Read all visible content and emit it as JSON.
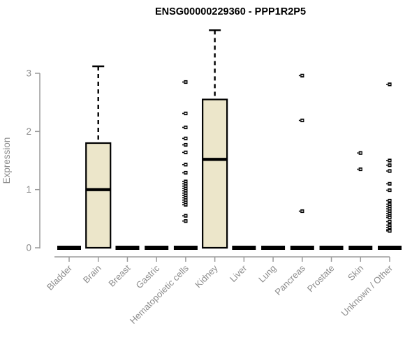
{
  "chart_data": {
    "type": "boxplot",
    "title": "ENSG00000229360 - PPP1R2P5",
    "ylabel": "Expression",
    "xlabel": "",
    "yticks": [
      0,
      1,
      2,
      3
    ],
    "ylim": [
      0,
      3.85
    ],
    "grid": false,
    "legend": false,
    "categories": [
      "Bladder",
      "Brain",
      "Breast",
      "Gastric",
      "Hematopoietic cells",
      "Kidney",
      "Liver",
      "Lung",
      "Pancreas",
      "Prostate",
      "Skin",
      "Unknown / Other"
    ],
    "series": [
      {
        "category": "Bladder",
        "q1": 0,
        "median": 0,
        "q3": 0,
        "whisker_low": 0,
        "whisker_high": 0,
        "outliers": []
      },
      {
        "category": "Brain",
        "q1": 0,
        "median": 1.0,
        "q3": 1.8,
        "whisker_low": 0,
        "whisker_high": 3.12,
        "outliers": []
      },
      {
        "category": "Breast",
        "q1": 0,
        "median": 0,
        "q3": 0,
        "whisker_low": 0,
        "whisker_high": 0,
        "outliers": []
      },
      {
        "category": "Gastric",
        "q1": 0,
        "median": 0,
        "q3": 0,
        "whisker_low": 0,
        "whisker_high": 0,
        "outliers": []
      },
      {
        "category": "Hematopoietic cells",
        "q1": 0,
        "median": 0,
        "q3": 0,
        "whisker_low": 0,
        "whisker_high": 0,
        "outliers": [
          2.85,
          2.31,
          2.07,
          1.88,
          1.77,
          1.64,
          1.43,
          1.29,
          1.14,
          1.1,
          1.06,
          1.02,
          0.98,
          0.94,
          0.9,
          0.86,
          0.82,
          0.78,
          0.74,
          0.55,
          0.46
        ]
      },
      {
        "category": "Kidney",
        "q1": 0,
        "median": 1.52,
        "q3": 2.55,
        "whisker_low": 0,
        "whisker_high": 3.74,
        "outliers": []
      },
      {
        "category": "Liver",
        "q1": 0,
        "median": 0,
        "q3": 0,
        "whisker_low": 0,
        "whisker_high": 0,
        "outliers": []
      },
      {
        "category": "Lung",
        "q1": 0,
        "median": 0,
        "q3": 0,
        "whisker_low": 0,
        "whisker_high": 0,
        "outliers": []
      },
      {
        "category": "Pancreas",
        "q1": 0,
        "median": 0,
        "q3": 0,
        "whisker_low": 0,
        "whisker_high": 0,
        "outliers": [
          2.96,
          2.19,
          0.63
        ]
      },
      {
        "category": "Prostate",
        "q1": 0,
        "median": 0,
        "q3": 0,
        "whisker_low": 0,
        "whisker_high": 0,
        "outliers": []
      },
      {
        "category": "Skin",
        "q1": 0,
        "median": 0,
        "q3": 0,
        "whisker_low": 0,
        "whisker_high": 0,
        "outliers": [
          1.63,
          1.35
        ]
      },
      {
        "category": "Unknown / Other",
        "q1": 0,
        "median": 0,
        "q3": 0,
        "whisker_low": 0,
        "whisker_high": 0,
        "outliers": [
          2.81,
          1.5,
          1.42,
          1.32,
          1.1,
          0.99,
          0.81,
          0.75,
          0.71,
          0.67,
          0.63,
          0.59,
          0.55,
          0.52,
          0.45,
          0.39,
          0.35,
          0.31,
          0.29
        ]
      }
    ],
    "colors": {
      "box_fill": "#ece6ca",
      "box_border": "#000000",
      "median": "#000000",
      "whisker": "#000000",
      "outlier": "#000000",
      "axis": "#9b9b9b",
      "tick_text": "#8c8c8c",
      "title": "#000000",
      "background": "#ffffff"
    }
  }
}
